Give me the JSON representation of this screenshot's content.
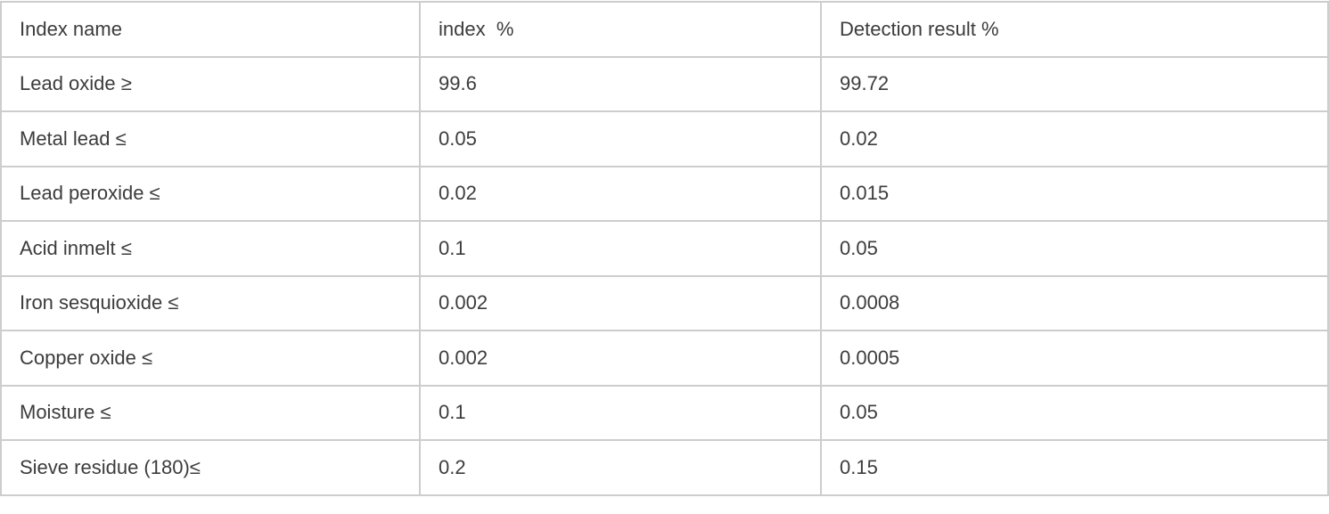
{
  "table": {
    "columns": [
      {
        "id": "name",
        "label": "Index name"
      },
      {
        "id": "index",
        "label": "index  %"
      },
      {
        "id": "result",
        "label": "Detection result %"
      }
    ],
    "rows": [
      {
        "name": "Lead oxide ≥",
        "index": "99.6",
        "result": "99.72"
      },
      {
        "name": "Metal lead ≤",
        "index": "0.05",
        "result": "0.02"
      },
      {
        "name": "Lead peroxide ≤",
        "index": "0.02",
        "result": "0.015"
      },
      {
        "name": "Acid inmelt ≤",
        "index": "0.1",
        "result": "0.05"
      },
      {
        "name": "Iron sesquioxide ≤",
        "index": "0.002",
        "result": "0.0008"
      },
      {
        "name": "Copper oxide ≤",
        "index": "0.002",
        "result": "0.0005"
      },
      {
        "name": "Moisture ≤",
        "index": "0.1",
        "result": "0.05"
      },
      {
        "name": "Sieve residue (180)≤",
        "index": "0.2",
        "result": "0.15"
      }
    ]
  },
  "colors": {
    "border": "#cdcdcd",
    "text": "#3c3c3c",
    "background": "#ffffff"
  }
}
